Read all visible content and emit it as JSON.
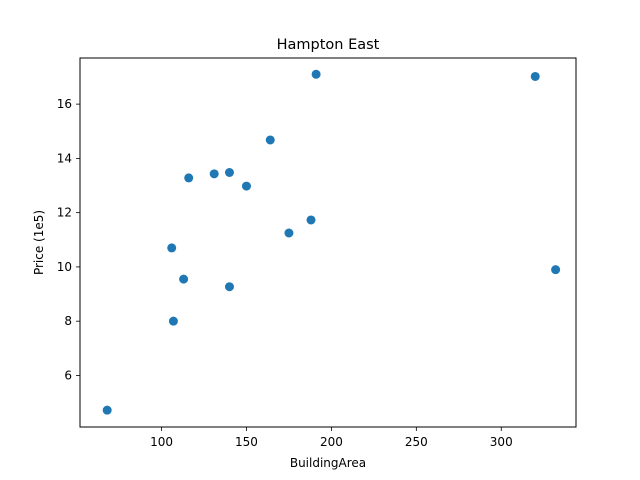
{
  "chart_data": {
    "type": "scatter",
    "title": "Hampton East",
    "xlabel": "BuildingArea",
    "ylabel": "Price (1e5)",
    "xlim": [
      52,
      344
    ],
    "ylim": [
      4.1,
      17.7
    ],
    "xticks": [
      100,
      150,
      200,
      250,
      300
    ],
    "yticks": [
      6,
      8,
      10,
      12,
      14,
      16
    ],
    "grid": false,
    "marker_color": "#1f77b4",
    "points": [
      {
        "x": 68,
        "y": 4.72
      },
      {
        "x": 106,
        "y": 10.7
      },
      {
        "x": 107,
        "y": 8.0
      },
      {
        "x": 113,
        "y": 9.55
      },
      {
        "x": 116,
        "y": 13.28
      },
      {
        "x": 131,
        "y": 13.43
      },
      {
        "x": 140,
        "y": 13.48
      },
      {
        "x": 140,
        "y": 9.27
      },
      {
        "x": 150,
        "y": 12.98
      },
      {
        "x": 164,
        "y": 14.68
      },
      {
        "x": 175,
        "y": 11.25
      },
      {
        "x": 188,
        "y": 11.73
      },
      {
        "x": 191,
        "y": 17.1
      },
      {
        "x": 320,
        "y": 17.02
      },
      {
        "x": 332,
        "y": 9.9
      }
    ]
  }
}
